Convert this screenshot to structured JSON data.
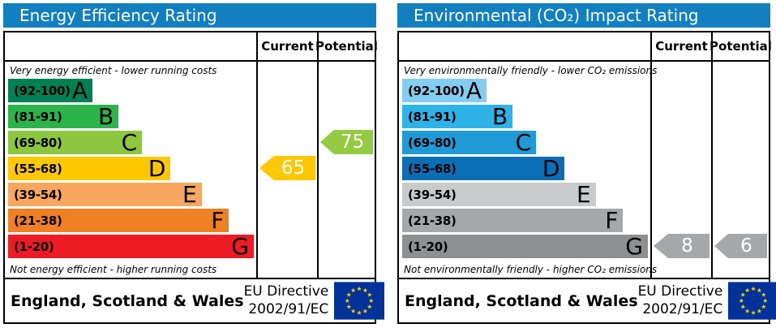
{
  "panels": [
    {
      "title": "Energy Efficiency Rating",
      "header_color": "#117fc0",
      "col_current": "Current",
      "col_potential": "Potential",
      "top_note": "Very energy efficient - lower running costs",
      "bottom_note": "Not energy efficient - higher running costs",
      "bands": [
        {
          "range": "(92-100)",
          "letter": "A",
          "color": "#008054",
          "width_pct": 34
        },
        {
          "range": "(81-91)",
          "letter": "B",
          "color": "#2cb34a",
          "width_pct": 44.5
        },
        {
          "range": "(69-80)",
          "letter": "C",
          "color": "#8dc63f",
          "width_pct": 54
        },
        {
          "range": "(55-68)",
          "letter": "D",
          "color": "#fdc800",
          "width_pct": 65.5
        },
        {
          "range": "(39-54)",
          "letter": "E",
          "color": "#f9a65f",
          "width_pct": 78
        },
        {
          "range": "(21-38)",
          "letter": "F",
          "color": "#ef8023",
          "width_pct": 89
        },
        {
          "range": "(1-20)",
          "letter": "G",
          "color": "#ed1c24",
          "width_pct": 99
        }
      ],
      "current": {
        "value": "65",
        "band_index": 3,
        "color": "#fdc800"
      },
      "potential": {
        "value": "75",
        "band_index": 2,
        "color": "#94cb43"
      },
      "footer": {
        "region": "England, Scotland & Wales",
        "directive_line1": "EU Directive",
        "directive_line2": "2002/91/EC"
      }
    },
    {
      "title": "Environmental (CO₂) Impact Rating",
      "header_color": "#117fc0",
      "col_current": "Current",
      "col_potential": "Potential",
      "top_note": "Very environmentally friendly - lower CO₂ emissions",
      "bottom_note": "Not environmentally friendly - higher CO₂ emissions",
      "bands": [
        {
          "range": "(92-100)",
          "letter": "A",
          "color": "#82cdf0",
          "width_pct": 34
        },
        {
          "range": "(81-91)",
          "letter": "B",
          "color": "#2db3e8",
          "width_pct": 44.5
        },
        {
          "range": "(69-80)",
          "letter": "C",
          "color": "#1f9ad7",
          "width_pct": 54
        },
        {
          "range": "(55-68)",
          "letter": "D",
          "color": "#0b6fb7",
          "width_pct": 65.5
        },
        {
          "range": "(39-54)",
          "letter": "E",
          "color": "#c9cacc",
          "width_pct": 78
        },
        {
          "range": "(21-38)",
          "letter": "F",
          "color": "#a5a7a9",
          "width_pct": 89
        },
        {
          "range": "(1-20)",
          "letter": "G",
          "color": "#8d8f91",
          "width_pct": 99
        }
      ],
      "current": {
        "value": "8",
        "band_index": 6,
        "color": "#a5a7a9"
      },
      "potential": {
        "value": "6",
        "band_index": 6,
        "color": "#a5a7a9"
      },
      "footer": {
        "region": "England, Scotland & Wales",
        "directive_line1": "EU Directive",
        "directive_line2": "2002/91/EC"
      }
    }
  ],
  "eu_flag": {
    "background": "#003399",
    "star_color": "#ffcc00"
  },
  "chart_data": [
    {
      "type": "bar",
      "title": "Energy Efficiency Rating",
      "categories": [
        "A (92-100)",
        "B (81-91)",
        "C (69-80)",
        "D (55-68)",
        "E (39-54)",
        "F (21-38)",
        "G (1-20)"
      ],
      "band_colors": [
        "#008054",
        "#2cb34a",
        "#8dc63f",
        "#fdc800",
        "#f9a65f",
        "#ef8023",
        "#ed1c24"
      ],
      "current": 65,
      "current_band": "D",
      "potential": 75,
      "potential_band": "C",
      "value_range": [
        1,
        100
      ],
      "top_label": "Very energy efficient - lower running costs",
      "bottom_label": "Not energy efficient - higher running costs",
      "region": "England, Scotland & Wales",
      "directive": "EU Directive 2002/91/EC"
    },
    {
      "type": "bar",
      "title": "Environmental (CO₂) Impact Rating",
      "categories": [
        "A (92-100)",
        "B (81-91)",
        "C (69-80)",
        "D (55-68)",
        "E (39-54)",
        "F (21-38)",
        "G (1-20)"
      ],
      "band_colors": [
        "#82cdf0",
        "#2db3e8",
        "#1f9ad7",
        "#0b6fb7",
        "#c9cacc",
        "#a5a7a9",
        "#8d8f91"
      ],
      "current": 8,
      "current_band": "G",
      "potential": 6,
      "potential_band": "G",
      "value_range": [
        1,
        100
      ],
      "top_label": "Very environmentally friendly - lower CO₂ emissions",
      "bottom_label": "Not environmentally friendly - higher CO₂ emissions",
      "region": "England, Scotland & Wales",
      "directive": "EU Directive 2002/91/EC"
    }
  ]
}
